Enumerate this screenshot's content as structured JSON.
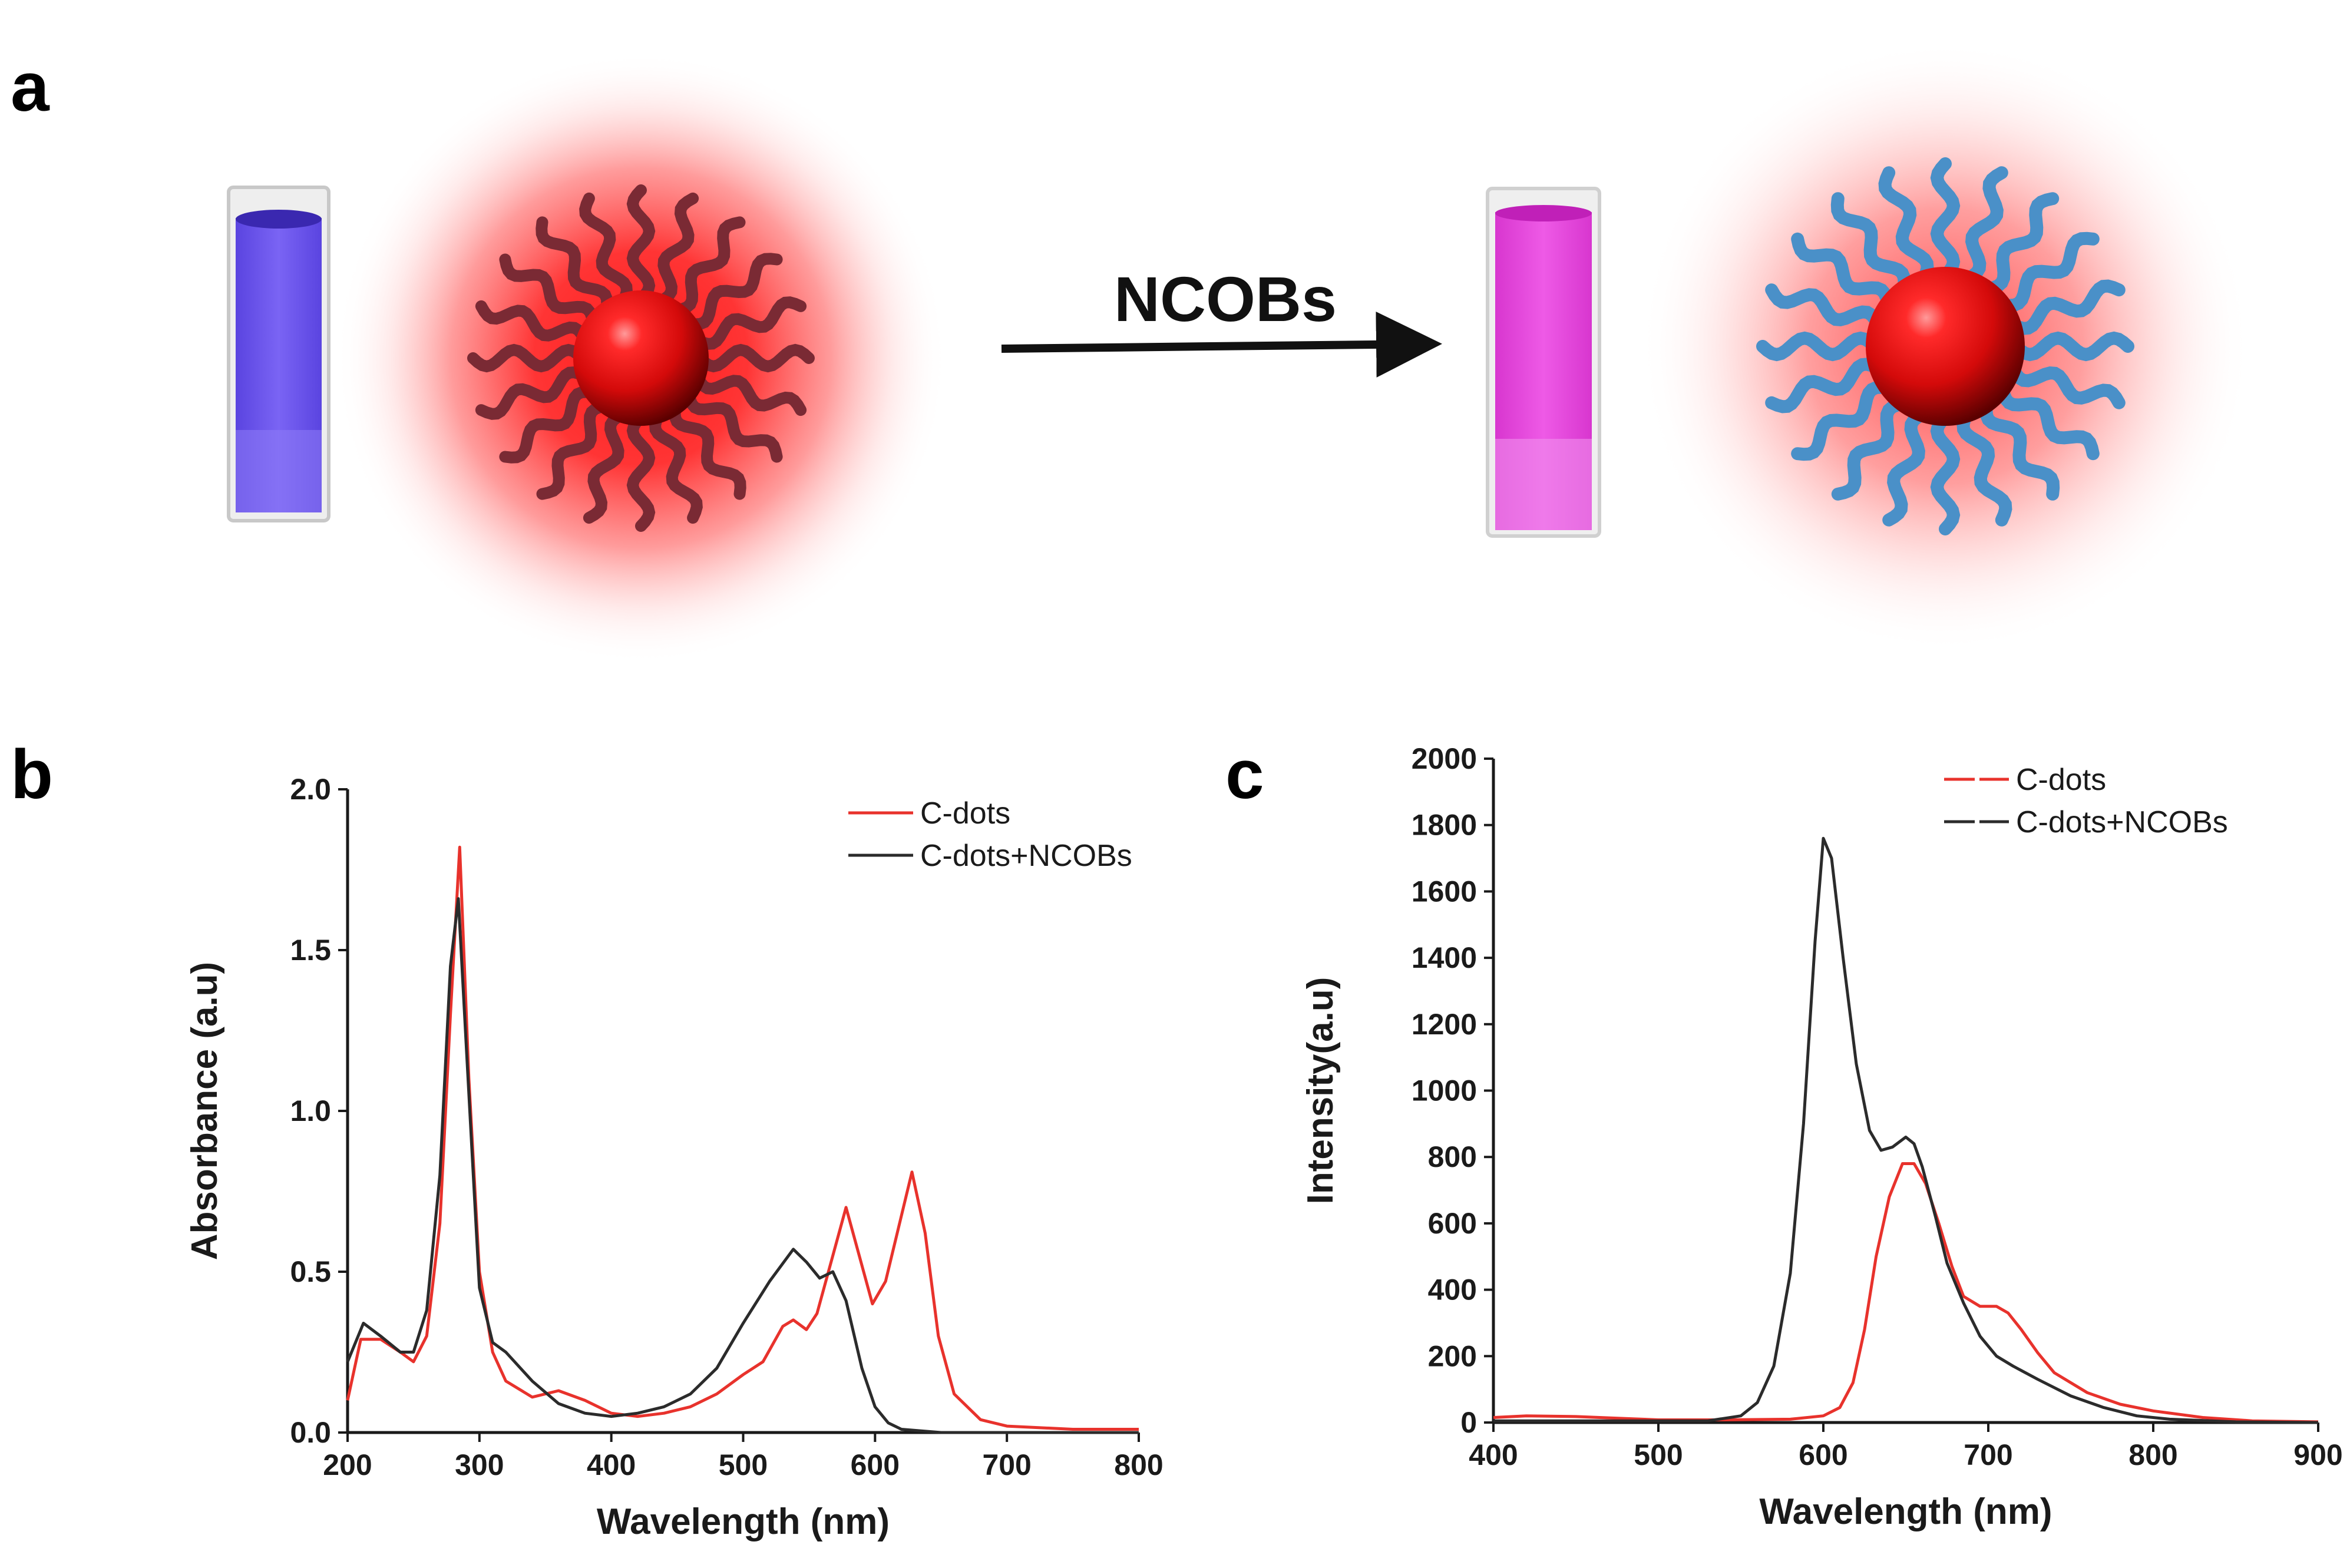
{
  "panels": {
    "a": {
      "label": "a",
      "arrow_label": "NCOBs",
      "colors": {
        "cuvette_before": "#6a4cf0",
        "cuvette_after": "#e03ad6",
        "glow": "#ff1a1a",
        "core": "#e01010",
        "chains_before": "#7a2a34",
        "chains_after": "#4a90c8"
      }
    },
    "b": {
      "label": "b"
    },
    "c": {
      "label": "c"
    }
  },
  "chart_data": [
    {
      "panel": "b",
      "type": "line",
      "xlabel": "Wavelength (nm)",
      "ylabel": "Absorbance (a.u)",
      "xlim": [
        200,
        800
      ],
      "ylim": [
        0,
        2.0
      ],
      "xticks": [
        "200",
        "300",
        "400",
        "500",
        "600",
        "700",
        "800"
      ],
      "yticks": [
        "0.0",
        "0.5",
        "1.0",
        "1.5",
        "2.0"
      ],
      "legend_position": "top-right",
      "series": [
        {
          "name": "C-dots",
          "color": "#e8322c",
          "x": [
            200,
            210,
            225,
            240,
            250,
            260,
            270,
            278,
            285,
            292,
            300,
            310,
            320,
            340,
            360,
            380,
            400,
            420,
            440,
            460,
            480,
            500,
            515,
            530,
            538,
            548,
            556,
            568,
            578,
            588,
            598,
            608,
            618,
            628,
            638,
            648,
            660,
            680,
            700,
            750,
            800
          ],
          "y": [
            0.1,
            0.29,
            0.29,
            0.25,
            0.22,
            0.3,
            0.65,
            1.3,
            1.82,
            1.1,
            0.5,
            0.25,
            0.16,
            0.11,
            0.13,
            0.1,
            0.06,
            0.05,
            0.06,
            0.08,
            0.12,
            0.18,
            0.22,
            0.33,
            0.35,
            0.32,
            0.37,
            0.55,
            0.7,
            0.55,
            0.4,
            0.47,
            0.64,
            0.81,
            0.62,
            0.3,
            0.12,
            0.04,
            0.02,
            0.01,
            0.01
          ]
        },
        {
          "name": "C-dots+NCOBs",
          "color": "#2b2b2b",
          "x": [
            200,
            212,
            225,
            240,
            250,
            260,
            270,
            278,
            284,
            290,
            300,
            310,
            320,
            340,
            360,
            380,
            400,
            420,
            440,
            460,
            480,
            500,
            520,
            538,
            548,
            558,
            568,
            578,
            590,
            600,
            610,
            620,
            650,
            700,
            800
          ],
          "y": [
            0.22,
            0.34,
            0.3,
            0.25,
            0.25,
            0.38,
            0.8,
            1.45,
            1.66,
            1.2,
            0.45,
            0.28,
            0.25,
            0.16,
            0.09,
            0.06,
            0.05,
            0.06,
            0.08,
            0.12,
            0.2,
            0.34,
            0.47,
            0.57,
            0.53,
            0.48,
            0.5,
            0.41,
            0.2,
            0.08,
            0.03,
            0.01,
            0.0,
            0.0,
            0.0
          ]
        }
      ]
    },
    {
      "panel": "c",
      "type": "line",
      "xlabel": "Wavelength (nm)",
      "ylabel": "Intensity(a.u)",
      "xlim": [
        400,
        900
      ],
      "ylim": [
        0,
        2000
      ],
      "xticks": [
        "400",
        "500",
        "600",
        "700",
        "800",
        "900"
      ],
      "yticks": [
        "0",
        "200",
        "400",
        "600",
        "800",
        "1000",
        "1200",
        "1400",
        "1600",
        "1800",
        "2000"
      ],
      "legend_position": "top-right",
      "series": [
        {
          "name": "C-dots",
          "color": "#e8322c",
          "x": [
            400,
            420,
            450,
            480,
            500,
            540,
            580,
            600,
            610,
            618,
            625,
            632,
            640,
            648,
            655,
            662,
            670,
            678,
            685,
            695,
            705,
            712,
            720,
            730,
            740,
            760,
            780,
            800,
            830,
            860,
            900
          ],
          "y": [
            15,
            20,
            18,
            12,
            8,
            8,
            10,
            20,
            45,
            120,
            280,
            500,
            680,
            780,
            780,
            720,
            600,
            470,
            380,
            350,
            350,
            330,
            280,
            210,
            150,
            90,
            55,
            35,
            15,
            5,
            2
          ]
        },
        {
          "name": "C-dots+NCOBs",
          "color": "#2b2b2b",
          "x": [
            400,
            450,
            500,
            530,
            550,
            560,
            570,
            580,
            588,
            595,
            600,
            605,
            612,
            620,
            628,
            635,
            642,
            650,
            655,
            660,
            668,
            675,
            685,
            695,
            705,
            715,
            730,
            750,
            770,
            790,
            810,
            850,
            900
          ],
          "y": [
            5,
            5,
            5,
            5,
            20,
            60,
            170,
            450,
            900,
            1450,
            1760,
            1700,
            1400,
            1080,
            880,
            820,
            830,
            860,
            840,
            770,
            620,
            480,
            360,
            260,
            200,
            170,
            130,
            80,
            45,
            20,
            10,
            2,
            0
          ]
        }
      ]
    }
  ]
}
